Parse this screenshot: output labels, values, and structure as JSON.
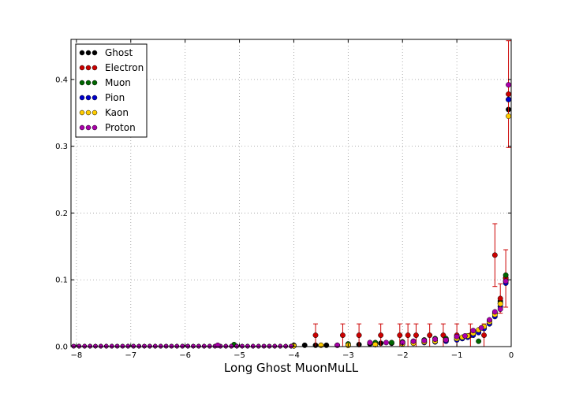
{
  "chart_data": {
    "type": "scatter",
    "title": "",
    "xlabel": "Long Ghost MuonMuLL",
    "ylabel": "",
    "xlim": [
      -8.1,
      0.0
    ],
    "ylim": [
      0.0,
      0.46
    ],
    "xticks": [
      -8,
      -7,
      -6,
      -5,
      -4,
      -3,
      -2,
      -1,
      0
    ],
    "xtick_labels": [
      "−8",
      "−7",
      "−6",
      "−5",
      "−4",
      "−3",
      "−2",
      "−1",
      "0"
    ],
    "yticks": [
      0.0,
      0.1,
      0.2,
      0.3,
      0.4
    ],
    "ytick_labels": [
      "0.0",
      "0.1",
      "0.2",
      "0.3",
      "0.4"
    ],
    "grid": true,
    "legend_position": "top-left",
    "series": [
      {
        "name": "Ghost",
        "color": "#000000",
        "points": [
          [
            -4.0,
            0.002
          ],
          [
            -3.8,
            0.002
          ],
          [
            -3.6,
            0.002
          ],
          [
            -3.4,
            0.002
          ],
          [
            -3.2,
            0.002
          ],
          [
            -3.0,
            0.002
          ],
          [
            -2.8,
            0.003
          ],
          [
            -2.6,
            0.004
          ],
          [
            -2.4,
            0.005
          ],
          [
            -2.2,
            0.005
          ],
          [
            -2.0,
            0.006
          ],
          [
            -1.8,
            0.006
          ],
          [
            -1.6,
            0.007
          ],
          [
            -1.4,
            0.008
          ],
          [
            -1.2,
            0.009
          ],
          [
            -1.0,
            0.011
          ],
          [
            -0.9,
            0.013
          ],
          [
            -0.8,
            0.016
          ],
          [
            -0.7,
            0.019
          ],
          [
            -0.6,
            0.024
          ],
          [
            -0.5,
            0.03
          ],
          [
            -0.4,
            0.038
          ],
          [
            -0.3,
            0.05
          ],
          [
            -0.2,
            0.068
          ],
          [
            -0.1,
            0.103
          ],
          [
            -0.05,
            0.355
          ]
        ]
      },
      {
        "name": "Electron",
        "color": "#cc0000",
        "points": [
          [
            -3.6,
            0.017
          ],
          [
            -3.1,
            0.017
          ],
          [
            -2.8,
            0.017
          ],
          [
            -2.4,
            0.017
          ],
          [
            -2.05,
            0.017
          ],
          [
            -1.9,
            0.017
          ],
          [
            -1.75,
            0.017
          ],
          [
            -1.5,
            0.017
          ],
          [
            -1.25,
            0.017
          ],
          [
            -1.0,
            0.017
          ],
          [
            -0.75,
            0.017
          ],
          [
            -0.5,
            0.017
          ],
          [
            -0.3,
            0.137
          ],
          [
            -0.2,
            0.072
          ],
          [
            -0.1,
            0.102
          ],
          [
            -0.05,
            0.378
          ]
        ],
        "errors": [
          0.017,
          0.017,
          0.017,
          0.017,
          0.017,
          0.017,
          0.017,
          0.017,
          0.017,
          0.017,
          0.017,
          0.017,
          0.047,
          0.022,
          0.043,
          0.08
        ]
      },
      {
        "name": "Muon",
        "color": "#006600",
        "points": [
          [
            -5.1,
            0.003
          ],
          [
            -3.0,
            0.004
          ],
          [
            -2.5,
            0.006
          ],
          [
            -2.2,
            0.006
          ],
          [
            -2.0,
            0.007
          ],
          [
            -1.8,
            0.008
          ],
          [
            -1.6,
            0.01
          ],
          [
            -1.4,
            0.012
          ],
          [
            -1.2,
            0.012
          ],
          [
            -1.0,
            0.014
          ],
          [
            -0.8,
            0.015
          ],
          [
            -0.6,
            0.008
          ],
          [
            -0.4,
            0.035
          ],
          [
            -0.3,
            0.05
          ],
          [
            -0.2,
            0.065
          ],
          [
            -0.1,
            0.107
          ],
          [
            -0.05,
            0.37
          ]
        ]
      },
      {
        "name": "Pion",
        "color": "#0000cc",
        "points": [
          [
            -4.0,
            0.001
          ],
          [
            -3.5,
            0.002
          ],
          [
            -3.0,
            0.002
          ],
          [
            -2.5,
            0.003
          ],
          [
            -2.0,
            0.004
          ],
          [
            -1.8,
            0.005
          ],
          [
            -1.6,
            0.006
          ],
          [
            -1.4,
            0.007
          ],
          [
            -1.2,
            0.008
          ],
          [
            -1.0,
            0.01
          ],
          [
            -0.9,
            0.012
          ],
          [
            -0.8,
            0.014
          ],
          [
            -0.7,
            0.017
          ],
          [
            -0.6,
            0.021
          ],
          [
            -0.5,
            0.027
          ],
          [
            -0.4,
            0.034
          ],
          [
            -0.3,
            0.045
          ],
          [
            -0.2,
            0.06
          ],
          [
            -0.1,
            0.095
          ],
          [
            -0.05,
            0.37
          ]
        ]
      },
      {
        "name": "Kaon",
        "color": "#ffcc00",
        "points": [
          [
            -4.0,
            0.001
          ],
          [
            -3.5,
            0.002
          ],
          [
            -3.0,
            0.002
          ],
          [
            -2.5,
            0.003
          ],
          [
            -2.0,
            0.004
          ],
          [
            -1.8,
            0.005
          ],
          [
            -1.6,
            0.007
          ],
          [
            -1.4,
            0.008
          ],
          [
            -1.2,
            0.01
          ],
          [
            -1.0,
            0.012
          ],
          [
            -0.9,
            0.014
          ],
          [
            -0.8,
            0.016
          ],
          [
            -0.7,
            0.02
          ],
          [
            -0.6,
            0.025
          ],
          [
            -0.5,
            0.03
          ],
          [
            -0.4,
            0.037
          ],
          [
            -0.3,
            0.048
          ],
          [
            -0.2,
            0.064
          ],
          [
            -0.1,
            0.098
          ],
          [
            -0.05,
            0.345
          ]
        ]
      },
      {
        "name": "Proton",
        "color": "#aa00aa",
        "points": [
          [
            -5.4,
            0.002
          ],
          [
            -3.2,
            0.002
          ],
          [
            -2.6,
            0.006
          ],
          [
            -2.3,
            0.006
          ],
          [
            -2.0,
            0.006
          ],
          [
            -1.8,
            0.008
          ],
          [
            -1.6,
            0.009
          ],
          [
            -1.4,
            0.011
          ],
          [
            -1.2,
            0.01
          ],
          [
            -1.0,
            0.015
          ],
          [
            -0.85,
            0.016
          ],
          [
            -0.7,
            0.024
          ],
          [
            -0.55,
            0.028
          ],
          [
            -0.4,
            0.04
          ],
          [
            -0.3,
            0.052
          ],
          [
            -0.2,
            0.056
          ],
          [
            -0.1,
            0.098
          ],
          [
            -0.05,
            0.392
          ]
        ]
      }
    ]
  }
}
